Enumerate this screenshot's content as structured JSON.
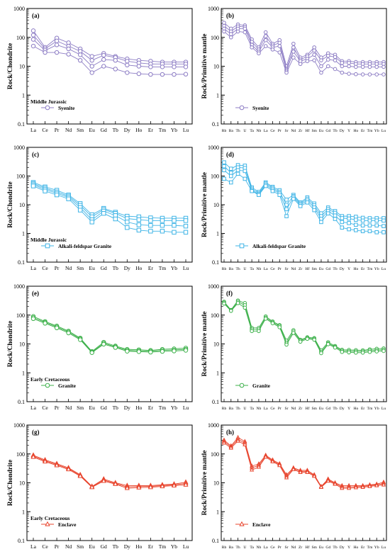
{
  "chart_data": [
    {
      "panel": "(a)",
      "type": "line",
      "log_y": true,
      "ylim": [
        0.1,
        1000
      ],
      "ylabel": "Rock/Chondrite",
      "ylabel_pre": "",
      "ylabel_post": "",
      "y_tick_labels": [
        "0.1",
        "1",
        "10",
        "100",
        "1000"
      ],
      "categories": [
        "La",
        "Ce",
        "Pr",
        "Nd",
        "Sm",
        "Eu",
        "Gd",
        "Tb",
        "Dy",
        "Ho",
        "Er",
        "Tm",
        "Yb",
        "Lu"
      ],
      "age": "Middle Jurassic",
      "legend": "Syenite",
      "marker": "circle",
      "color": "#8c7cc4",
      "series": [
        {
          "values": [
            170,
            45,
            95,
            65,
            40,
            22,
            28,
            22,
            18,
            16,
            15,
            14,
            14,
            14
          ]
        },
        {
          "values": [
            120,
            40,
            75,
            50,
            33,
            16,
            24,
            20,
            15,
            13,
            12,
            12,
            12,
            12
          ]
        },
        {
          "values": [
            85,
            35,
            55,
            40,
            25,
            10,
            17,
            16,
            11,
            10,
            9.5,
            9.5,
            9.5,
            9.5
          ]
        },
        {
          "values": [
            50,
            30,
            30,
            26,
            16,
            6,
            10,
            8,
            6,
            5.5,
            5.2,
            5.2,
            5.2,
            5.3
          ]
        }
      ]
    },
    {
      "panel": "(b)",
      "type": "line",
      "log_y": true,
      "ylim": [
        0.1,
        1000
      ],
      "ylabel": "Rock/Primitive mantle",
      "ylabel_pre": "",
      "ylabel_post": "",
      "y_tick_labels": [
        "0.1",
        "1",
        "10",
        "100",
        "1000"
      ],
      "categories": [
        "Rb",
        "Ba",
        "Th",
        "U",
        "Ta",
        "Nb",
        "La",
        "Ce",
        "Pr",
        "Sr",
        "Nd",
        "Zr",
        "Hf",
        "Sm",
        "Eu",
        "Gd",
        "Tb",
        "Dy",
        "Y",
        "Ho",
        "Er",
        "Tm",
        "Yb",
        "Lu"
      ],
      "age": "",
      "legend": "Syenite",
      "marker": "circle",
      "color": "#8c7cc4",
      "series": [
        {
          "values": [
            320,
            200,
            280,
            260,
            85,
            45,
            150,
            60,
            80,
            10,
            60,
            20,
            25,
            45,
            20,
            28,
            25,
            15,
            15,
            14,
            14,
            14,
            14,
            14
          ]
        },
        {
          "values": [
            250,
            160,
            240,
            230,
            70,
            38,
            110,
            52,
            65,
            8,
            45,
            17,
            22,
            35,
            16,
            23,
            21,
            13,
            13,
            12,
            12,
            12,
            12,
            12
          ]
        },
        {
          "values": [
            200,
            130,
            200,
            200,
            55,
            32,
            80,
            45,
            50,
            7,
            32,
            15,
            18,
            25,
            10,
            17,
            16,
            10,
            10,
            9.5,
            9.5,
            9.5,
            9.5,
            9.5
          ]
        },
        {
          "values": [
            160,
            100,
            160,
            150,
            45,
            28,
            50,
            38,
            30,
            6,
            20,
            12,
            15,
            16,
            6,
            10,
            8,
            6,
            5.5,
            5.3,
            5.2,
            5.2,
            5.2,
            5.2
          ]
        }
      ]
    },
    {
      "panel": "(c)",
      "type": "line",
      "log_y": true,
      "ylim": [
        0.1,
        1000
      ],
      "ylabel": "Rock/Chondrite",
      "ylabel_pre": "",
      "ylabel_post": "",
      "y_tick_labels": [
        "0.1",
        "1",
        "10",
        "100",
        "1000"
      ],
      "categories": [
        "La",
        "Ce",
        "Pr",
        "Nd",
        "Sm",
        "Eu",
        "Gd",
        "Tb",
        "Dy",
        "Ho",
        "Er",
        "Tm",
        "Yb",
        "Lu"
      ],
      "age": "Middle Jurassic",
      "legend": "Alkali-feldspar Granite",
      "marker": "square",
      "color": "#3fb4e6",
      "series": [
        {
          "values": [
            60,
            42,
            32,
            22,
            11,
            4.5,
            7.5,
            5.5,
            4,
            3.8,
            3.5,
            3.4,
            3.4,
            3.4
          ]
        },
        {
          "values": [
            55,
            38,
            28,
            20,
            9.5,
            3.8,
            6.8,
            5,
            3.3,
            3,
            2.8,
            2.8,
            2.8,
            2.8
          ]
        },
        {
          "values": [
            50,
            34,
            25,
            18,
            8,
            3.0,
            6.0,
            4.2,
            2.5,
            2.0,
            1.9,
            1.9,
            1.9,
            1.8
          ]
        },
        {
          "values": [
            45,
            30,
            22,
            16,
            6.5,
            2.5,
            5.0,
            3.2,
            1.6,
            1.3,
            1.2,
            1.2,
            1.1,
            1.1
          ]
        }
      ]
    },
    {
      "panel": "(d)",
      "type": "line",
      "log_y": true,
      "ylim": [
        0.1,
        1000
      ],
      "ylabel": "Rock/Primitive mantle",
      "ylabel_pre": "",
      "ylabel_post": "",
      "y_tick_labels": [
        "0.1",
        "1",
        "10",
        "100",
        "1000"
      ],
      "categories": [
        "Rb",
        "Ba",
        "Th",
        "U",
        "Ta",
        "Nb",
        "La",
        "Ce",
        "Pr",
        "Sr",
        "Nd",
        "Zr",
        "Hf",
        "Sm",
        "Eu",
        "Gd",
        "Tb",
        "Dy",
        "Y",
        "Ho",
        "Er",
        "Tm",
        "Yb",
        "Lu"
      ],
      "age": "",
      "legend": "Alkali-feldspar Granite",
      "marker": "square",
      "color": "#3fb4e6",
      "series": [
        {
          "values": [
            300,
            180,
            240,
            230,
            40,
            28,
            60,
            42,
            32,
            15,
            22,
            12,
            18,
            11,
            5.0,
            8.0,
            6.0,
            4.0,
            4.0,
            3.8,
            3.5,
            3.4,
            3.4,
            3.4
          ]
        },
        {
          "values": [
            220,
            130,
            200,
            190,
            36,
            25,
            55,
            38,
            28,
            10,
            20,
            11,
            16,
            9.5,
            4.0,
            7.0,
            5.2,
            3.4,
            3.3,
            3.0,
            2.8,
            2.8,
            2.8,
            2.8
          ]
        },
        {
          "values": [
            160,
            100,
            160,
            150,
            32,
            23,
            50,
            34,
            25,
            7,
            18,
            10,
            14,
            8,
            3.2,
            6.0,
            4.2,
            2.5,
            2.3,
            2.0,
            1.9,
            1.9,
            1.9,
            1.8
          ]
        },
        {
          "values": [
            80,
            60,
            120,
            80,
            30,
            22,
            45,
            30,
            22,
            4,
            16,
            9,
            12,
            6.5,
            2.5,
            5.0,
            3.2,
            1.6,
            1.4,
            1.3,
            1.2,
            1.2,
            1.1,
            1.1
          ]
        }
      ]
    },
    {
      "panel": "(e)",
      "type": "line",
      "log_y": true,
      "ylim": [
        0.1,
        1000
      ],
      "ylabel": "Rock/Chondrite",
      "ylabel_pre": "",
      "ylabel_post": "",
      "y_tick_labels": [
        "0.1",
        "1",
        "10",
        "100",
        "1000"
      ],
      "categories": [
        "La",
        "Ce",
        "Pr",
        "Nd",
        "Sm",
        "Eu",
        "Gd",
        "Tb",
        "Dy",
        "Ho",
        "Er",
        "Tm",
        "Yb",
        "Lu"
      ],
      "age": "Early Cretaceous",
      "legend": "Granite",
      "marker": "circle",
      "color": "#3cb04a",
      "series": [
        {
          "values": [
            90,
            60,
            42,
            28,
            16,
            5.5,
            11.5,
            8.5,
            6.5,
            6.3,
            6.0,
            6.5,
            6.8,
            7.2
          ]
        },
        {
          "values": [
            82,
            56,
            39,
            26,
            15,
            5.2,
            10.5,
            8.0,
            6.0,
            5.8,
            5.6,
            6.0,
            6.2,
            6.5
          ]
        },
        {
          "values": [
            75,
            52,
            36,
            24,
            14,
            5.0,
            9.8,
            7.5,
            5.6,
            5.4,
            5.2,
            5.5,
            5.7,
            6.0
          ]
        }
      ]
    },
    {
      "panel": "(f)",
      "type": "line",
      "log_y": true,
      "ylim": [
        0.1,
        1000
      ],
      "ylabel": "Rock/Primitive mantle",
      "ylabel_pre": "",
      "ylabel_post": "",
      "y_tick_labels": [
        "0.1",
        "1",
        "10",
        "100",
        "1000"
      ],
      "categories": [
        "Rb",
        "Ba",
        "Th",
        "U",
        "Ta",
        "Nb",
        "La",
        "Ce",
        "Pr",
        "Sr",
        "Nd",
        "Zr",
        "Hf",
        "Sm",
        "Eu",
        "Gd",
        "Tb",
        "Dy",
        "Y",
        "Ho",
        "Er",
        "Tm",
        "Yb",
        "Lu"
      ],
      "age": "",
      "legend": "Granite",
      "marker": "circle",
      "color": "#3cb04a",
      "series": [
        {
          "values": [
            290,
            150,
            320,
            260,
            36,
            36,
            90,
            60,
            45,
            13,
            30,
            14,
            17,
            16,
            6.0,
            11.5,
            8.5,
            6.3,
            6.2,
            6.1,
            6.0,
            6.5,
            6.8,
            7.0
          ]
        },
        {
          "values": [
            270,
            145,
            290,
            220,
            32,
            32,
            82,
            56,
            42,
            11,
            27,
            13,
            16,
            15,
            5.3,
            10.5,
            8.0,
            5.8,
            5.6,
            5.5,
            5.5,
            5.9,
            6.1,
            6.3
          ]
        },
        {
          "values": [
            250,
            140,
            260,
            180,
            28,
            28,
            75,
            52,
            38,
            9.5,
            24,
            12,
            15,
            14,
            4.8,
            9.8,
            7.5,
            5.3,
            5.1,
            5.0,
            5.0,
            5.3,
            5.5,
            5.7
          ]
        }
      ]
    },
    {
      "panel": "(g)",
      "type": "line",
      "log_y": true,
      "ylim": [
        0.1,
        1000
      ],
      "ylabel": "Rock/Chondrite",
      "ylabel_pre": "",
      "ylabel_post": "",
      "y_tick_labels": [
        "0.1",
        "1",
        "10",
        "100",
        "1000"
      ],
      "categories": [
        "La",
        "Ce",
        "Pr",
        "Nd",
        "Sm",
        "Eu",
        "Gd",
        "Tb",
        "Dy",
        "Ho",
        "Er",
        "Tm",
        "Yb",
        "Lu"
      ],
      "age": "Early Cretaceous",
      "legend": "Enclave",
      "marker": "triangle",
      "color": "#e8452e",
      "series": [
        {
          "values": [
            90,
            62,
            46,
            33,
            19,
            7.5,
            13.5,
            10,
            8.0,
            8.0,
            8.0,
            8.5,
            9.0,
            10.5
          ]
        },
        {
          "values": [
            84,
            58,
            43,
            31,
            18,
            7.2,
            12.5,
            9.5,
            7.2,
            7.5,
            7.5,
            8.0,
            8.5,
            9.5
          ]
        },
        {
          "values": [
            78,
            54,
            40,
            29,
            17,
            7.0,
            11.5,
            9.0,
            6.5,
            6.8,
            7.0,
            7.5,
            8.0,
            8.5
          ]
        }
      ]
    },
    {
      "panel": "(h)",
      "type": "line",
      "log_y": true,
      "ylim": [
        0.1,
        1000
      ],
      "ylabel": "Rock/Primitive mantle",
      "ylabel_pre": "",
      "ylabel_post": "",
      "y_tick_labels": [
        "0.1",
        "1",
        "10",
        "100",
        "1000"
      ],
      "categories": [
        "Rb",
        "Ba",
        "Th",
        "U",
        "Ta",
        "Nb",
        "La",
        "Ce",
        "Pr",
        "Sr",
        "Nd",
        "Zr",
        "Hf",
        "Sm",
        "Eu",
        "Gd",
        "Tb",
        "Dy",
        "Y",
        "Ho",
        "Er",
        "Tm",
        "Yb",
        "Lu"
      ],
      "age": "",
      "legend": "Enclave",
      "marker": "triangle",
      "color": "#e8452e",
      "series": [
        {
          "values": [
            300,
            190,
            370,
            270,
            38,
            45,
            90,
            62,
            46,
            19,
            33,
            27,
            27,
            19,
            7.5,
            13.5,
            10,
            8.0,
            8.0,
            8.0,
            8.0,
            8.5,
            9.0,
            10.5
          ]
        },
        {
          "values": [
            270,
            175,
            320,
            240,
            33,
            40,
            84,
            58,
            43,
            17,
            31,
            25,
            25,
            18,
            7.2,
            12.5,
            9.5,
            7.2,
            7.2,
            7.4,
            7.5,
            8.0,
            8.5,
            9.5
          ]
        },
        {
          "values": [
            240,
            160,
            280,
            210,
            28,
            35,
            78,
            54,
            40,
            15,
            29,
            23,
            23,
            17,
            7.0,
            11.5,
            9.0,
            6.5,
            6.5,
            6.8,
            7.0,
            7.5,
            8.0,
            8.5
          ]
        }
      ]
    }
  ]
}
